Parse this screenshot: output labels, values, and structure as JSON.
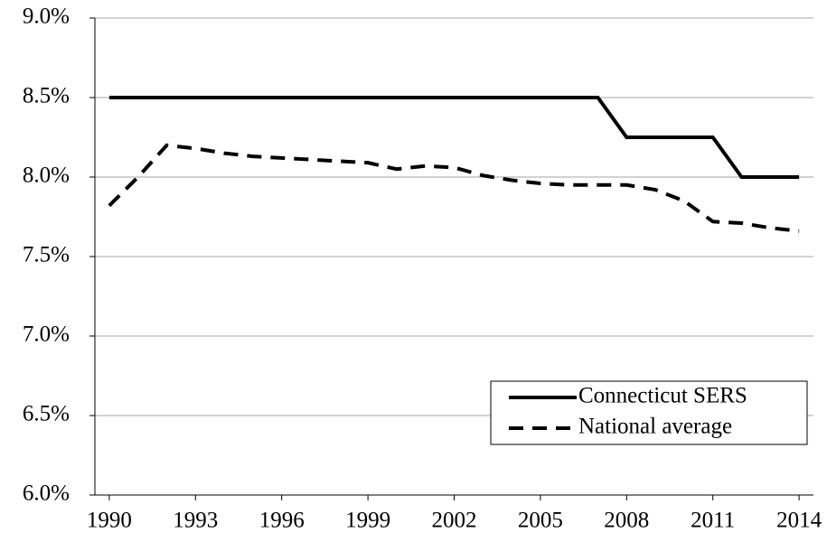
{
  "chart_data": {
    "type": "line",
    "x": [
      1990,
      1991,
      1992,
      1993,
      1994,
      1995,
      1996,
      1997,
      1998,
      1999,
      2000,
      2001,
      2002,
      2003,
      2004,
      2005,
      2006,
      2007,
      2008,
      2009,
      2010,
      2011,
      2012,
      2013,
      2014
    ],
    "series": [
      {
        "name": "Connecticut SERS",
        "color": "#000000",
        "dash": "solid",
        "values": [
          8.5,
          8.5,
          8.5,
          8.5,
          8.5,
          8.5,
          8.5,
          8.5,
          8.5,
          8.5,
          8.5,
          8.5,
          8.5,
          8.5,
          8.5,
          8.5,
          8.5,
          8.5,
          8.25,
          8.25,
          8.25,
          8.25,
          8.0,
          8.0,
          8.0
        ]
      },
      {
        "name": "National average",
        "color": "#000000",
        "dash": "dashed",
        "values": [
          7.82,
          8.0,
          8.2,
          8.18,
          8.15,
          8.13,
          8.12,
          8.11,
          8.1,
          8.09,
          8.05,
          8.07,
          8.06,
          8.01,
          7.98,
          7.96,
          7.95,
          7.95,
          7.95,
          7.92,
          7.85,
          7.72,
          7.71,
          7.68,
          7.66
        ]
      }
    ],
    "xlim": [
      1989.5,
      2014.5
    ],
    "xticks": [
      1990,
      1993,
      1996,
      1999,
      2002,
      2005,
      2008,
      2011,
      2014
    ],
    "ylim": [
      6,
      9
    ],
    "yticks": [
      {
        "value": 6,
        "label": "6.0%"
      },
      {
        "value": 6.5,
        "label": "6.5%"
      },
      {
        "value": 7,
        "label": "7.0%"
      },
      {
        "value": 7.5,
        "label": "7.5%"
      },
      {
        "value": 8,
        "label": "8.0%"
      },
      {
        "value": 8.5,
        "label": "8.5%"
      },
      {
        "value": 9,
        "label": "9.0%"
      }
    ],
    "grid": true,
    "legend": "lower right"
  }
}
